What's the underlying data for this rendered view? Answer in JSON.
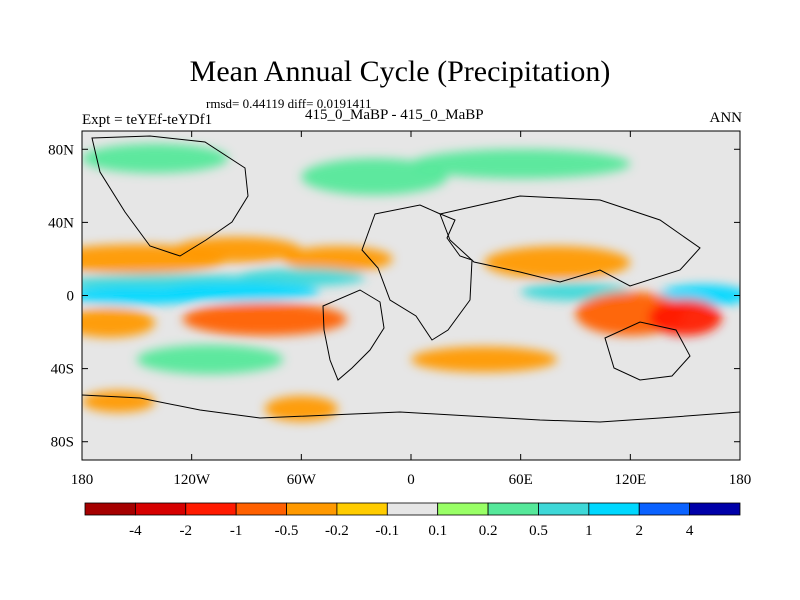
{
  "header": {
    "title": "Mean Annual Cycle (Precipitation)",
    "stats": "rmsd= 0.44119 diff= 0.0191411",
    "experiment": "Expt = teYEf-teYDf1",
    "comparison": "415_0_MaBP - 415_0_MaBP",
    "season": "ANN"
  },
  "chart_data": {
    "type": "heatmap",
    "title": "Mean Annual Cycle (Precipitation)",
    "subtitle": "rmsd= 0.44119 diff= 0.0191411",
    "projection": "cylindrical equidistant",
    "x_range": [
      -180,
      180
    ],
    "y_range": [
      -90,
      90
    ],
    "x_ticks": [
      {
        "value": -180,
        "label": "180"
      },
      {
        "value": -120,
        "label": "120W"
      },
      {
        "value": -60,
        "label": "60W"
      },
      {
        "value": 0,
        "label": "0"
      },
      {
        "value": 60,
        "label": "60E"
      },
      {
        "value": 120,
        "label": "120E"
      },
      {
        "value": 180,
        "label": "180"
      }
    ],
    "y_ticks": [
      {
        "value": 80,
        "label": "80N"
      },
      {
        "value": 40,
        "label": "40N"
      },
      {
        "value": 0,
        "label": "0"
      },
      {
        "value": -40,
        "label": "40S"
      },
      {
        "value": -80,
        "label": "80S"
      }
    ],
    "colorbar": {
      "labels": [
        "-4",
        "-2",
        "-1",
        "-0.5",
        "-0.2",
        "-0.1",
        "0.1",
        "0.2",
        "0.5",
        "1",
        "2",
        "4"
      ],
      "colors": [
        "#a50000",
        "#d60000",
        "#ff1a00",
        "#ff6000",
        "#ff9900",
        "#ffcc00",
        "#e6e6e6",
        "#99ff66",
        "#55e89a",
        "#3ed8d8",
        "#00d8ff",
        "#0a62ff",
        "#0000a8"
      ]
    },
    "fields": [
      {
        "lon": -150,
        "lat": 20,
        "wlon": 50,
        "wlat": 8,
        "value": -0.4
      },
      {
        "lon": -95,
        "lat": 25,
        "wlon": 35,
        "wlat": 7,
        "value": -0.5
      },
      {
        "lon": -40,
        "lat": 20,
        "wlon": 30,
        "wlat": 7,
        "value": -0.3
      },
      {
        "lon": 80,
        "lat": 18,
        "wlon": 40,
        "wlat": 9,
        "value": -0.4
      },
      {
        "lon": -130,
        "lat": 7,
        "wlon": 60,
        "wlat": 5,
        "value": 0.6
      },
      {
        "lon": -60,
        "lat": 10,
        "wlon": 35,
        "wlat": 5,
        "value": 0.5
      },
      {
        "lon": -150,
        "lat": 0,
        "wlon": 40,
        "wlat": 5,
        "value": 1.5
      },
      {
        "lon": -95,
        "lat": 2,
        "wlon": 45,
        "wlat": 5,
        "value": 1.2
      },
      {
        "lon": 90,
        "lat": 2,
        "wlon": 30,
        "wlat": 5,
        "value": 0.8
      },
      {
        "lon": 160,
        "lat": 0,
        "wlon": 25,
        "wlat": 6,
        "value": 1.3
      },
      {
        "lon": -165,
        "lat": -15,
        "wlon": 25,
        "wlat": 8,
        "value": -0.5
      },
      {
        "lon": -80,
        "lat": -13,
        "wlon": 45,
        "wlat": 9,
        "value": -0.6
      },
      {
        "lon": 120,
        "lat": -10,
        "wlon": 30,
        "wlat": 12,
        "value": -0.7
      },
      {
        "lon": 150,
        "lat": -12,
        "wlon": 20,
        "wlat": 10,
        "value": -1.5
      },
      {
        "lon": -110,
        "lat": -35,
        "wlon": 40,
        "wlat": 8,
        "value": 0.3
      },
      {
        "lon": 40,
        "lat": -35,
        "wlon": 40,
        "wlat": 7,
        "value": -0.3
      },
      {
        "lon": -160,
        "lat": -58,
        "wlon": 20,
        "wlat": 6,
        "value": -0.3
      },
      {
        "lon": -60,
        "lat": -62,
        "wlon": 20,
        "wlat": 7,
        "value": -0.4
      },
      {
        "lon": -20,
        "lat": 65,
        "wlon": 40,
        "wlat": 10,
        "value": 0.2
      },
      {
        "lon": 60,
        "lat": 72,
        "wlon": 60,
        "wlat": 8,
        "value": 0.2
      },
      {
        "lon": -140,
        "lat": 75,
        "wlon": 40,
        "wlat": 8,
        "value": 0.2
      }
    ]
  }
}
